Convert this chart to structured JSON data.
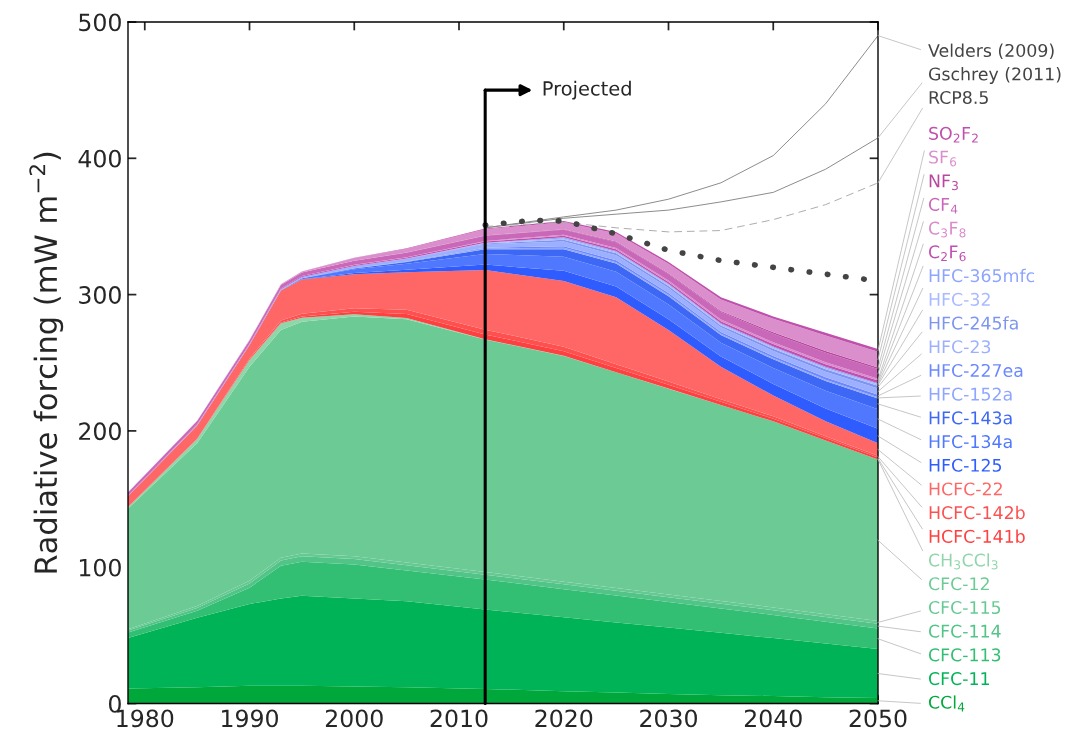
{
  "chart_data": {
    "type": "area",
    "stacked": true,
    "ylabel": "Radiative forcing (mW m$^{−2}$)",
    "xlim": [
      1978.4,
      2050
    ],
    "ylim": [
      0,
      500
    ],
    "xticks": [
      1980,
      1990,
      2000,
      2010,
      2020,
      2030,
      2040,
      2050
    ],
    "yticks": [
      0,
      100,
      200,
      300,
      400,
      500
    ],
    "grid": false,
    "legend": "right",
    "ref_lines": [
      {
        "axis": "x",
        "value": 2012.5,
        "label": "Projected"
      }
    ],
    "x": [
      1978.4,
      1985,
      1990,
      1993,
      1995,
      2000,
      2005,
      2012.5,
      2020,
      2025,
      2030,
      2035,
      2040,
      2045,
      2050
    ],
    "series": [
      {
        "name": "CCl$_{4}$",
        "color": "#00a83c",
        "values": [
          11,
          12,
          13,
          13,
          13,
          12.5,
          12,
          10.7,
          9,
          8,
          7,
          6,
          5.5,
          4.5,
          4
        ]
      },
      {
        "name": "CFC-11",
        "color": "#00b356",
        "values": [
          37,
          51,
          60,
          64,
          66,
          64.5,
          63,
          58.3,
          54.3,
          51.5,
          48.7,
          45.9,
          42.5,
          39.5,
          36
        ]
      },
      {
        "name": "CFC-113",
        "color": "#33bf73",
        "values": [
          4,
          5,
          12,
          24,
          25,
          25,
          22.5,
          22,
          20.6,
          19.7,
          18.7,
          17.8,
          17,
          16,
          15
        ]
      },
      {
        "name": "CFC-114",
        "color": "#52c487",
        "values": [
          1.5,
          2,
          3,
          4,
          4,
          4,
          4,
          3.5,
          3.5,
          3.5,
          3.5,
          3.5,
          3.5,
          3.5,
          3.5
        ]
      },
      {
        "name": "CFC-115",
        "color": "#66c993",
        "values": [
          1,
          1.5,
          2,
          2,
          2,
          2,
          2,
          2,
          2,
          2,
          2,
          2,
          2,
          2,
          2
        ]
      },
      {
        "name": "CFC-12",
        "color": "#6ccb95",
        "values": [
          88.5,
          119.5,
          157,
          167,
          170,
          176,
          178.5,
          170.5,
          165.6,
          158.3,
          151.1,
          143.8,
          136.5,
          127.5,
          118.5
        ]
      },
      {
        "name": "CH$_{3}$CCl$_{3}$",
        "color": "#8fd6aa",
        "values": [
          1,
          3,
          5,
          5,
          3,
          1.5,
          0.8,
          0.3,
          0.2,
          0.1,
          0.1,
          0,
          0,
          0,
          0
        ]
      },
      {
        "name": "HCFC-141b",
        "color": "#ff4040",
        "values": [
          0,
          0,
          0,
          0.5,
          1,
          2,
          3,
          3.5,
          3.3,
          3,
          2.7,
          2.3,
          2,
          1.7,
          1.5
        ]
      },
      {
        "name": "HCFC-142b",
        "color": "#ff5050",
        "values": [
          0.2,
          0.3,
          1,
          1.5,
          2,
          2.5,
          3,
          3.5,
          3.2,
          2.8,
          2.4,
          2,
          1.7,
          1.4,
          1.2
        ]
      },
      {
        "name": "HCFC-22",
        "color": "#ff6666",
        "values": [
          7.8,
          9.7,
          10,
          22,
          25,
          25,
          27.6,
          43.7,
          48.3,
          49.1,
          37.8,
          23.7,
          15.3,
          10.9,
          9.3
        ]
      },
      {
        "name": "HFC-125",
        "color": "#2f5cff",
        "values": [
          0,
          0,
          0,
          0,
          0.2,
          0.8,
          1.8,
          4,
          7.5,
          8,
          8,
          7.5,
          8.5,
          9.5,
          10.5
        ]
      },
      {
        "name": "HFC-134a",
        "color": "#5078ff",
        "values": [
          0,
          0,
          0,
          0.2,
          0.8,
          2.8,
          4.5,
          7.8,
          10.3,
          10.8,
          10.8,
          10.2,
          11.6,
          13.0,
          14.4
        ]
      },
      {
        "name": "HFC-143a",
        "color": "#3d68f5",
        "values": [
          0,
          0,
          0,
          0,
          0,
          0.5,
          1.2,
          3.5,
          5.5,
          6,
          6,
          5.6,
          6.4,
          7.1,
          7.8
        ]
      },
      {
        "name": "HFC-152a",
        "color": "#8fa6ff",
        "values": [
          0,
          0,
          0,
          0,
          0,
          0.1,
          0.2,
          0.5,
          1.0,
          1.0,
          1.0,
          1.0,
          1.0,
          1.0,
          1.0
        ]
      },
      {
        "name": "HFC-227ea",
        "color": "#6b88ff",
        "values": [
          0,
          0,
          0,
          0,
          0,
          0.1,
          0.2,
          0.6,
          1.2,
          1.4,
          1.4,
          1.3,
          1.5,
          1.7,
          1.9
        ]
      },
      {
        "name": "HFC-23",
        "color": "#9db0ff",
        "values": [
          0.3,
          0.5,
          0.5,
          0.8,
          1.0,
          1.7,
          2.0,
          2.6,
          3.5,
          3.6,
          3.6,
          3.4,
          3.7,
          4.1,
          4.5
        ]
      },
      {
        "name": "HFC-245fa",
        "color": "#7d95f0",
        "values": [
          0,
          0,
          0,
          0,
          0,
          0,
          0.1,
          0.5,
          1.3,
          1.5,
          1.5,
          1.4,
          1.6,
          1.8,
          2.0
        ]
      },
      {
        "name": "HFC-32",
        "color": "#a9baff",
        "values": [
          0,
          0,
          0,
          0,
          0,
          0,
          0,
          0.4,
          0.9,
          0.9,
          0.9,
          0.8,
          0.9,
          1.0,
          1.1
        ]
      },
      {
        "name": "HFC-365mfc",
        "color": "#8ea4ff",
        "values": [
          0,
          0,
          0,
          0,
          0,
          0,
          0,
          0.1,
          0.8,
          0.8,
          0.8,
          0.8,
          0.8,
          0.8,
          0.8
        ]
      },
      {
        "name": "C$_{2}$F$_{6}$",
        "color": "#c24fb0",
        "values": [
          0.3,
          0.4,
          0.5,
          0.5,
          0.6,
          0.8,
          0.9,
          1.0,
          1.1,
          1.2,
          1.3,
          1.5,
          1.7,
          1.9,
          1.9
        ]
      },
      {
        "name": "C$_{3}$F$_{8}$",
        "color": "#d98bcb",
        "values": [
          0,
          0,
          0,
          0,
          0,
          0.1,
          0.1,
          0.4,
          0.8,
          1.0,
          1.1,
          1.2,
          1.3,
          1.4,
          1.4
        ]
      },
      {
        "name": "CF$_{4}$",
        "color": "#c968b9",
        "values": [
          2.2,
          2.3,
          2.4,
          2.5,
          2.6,
          2.9,
          3.3,
          3.7,
          3.7,
          4.2,
          4.7,
          5.5,
          6.3,
          7.1,
          7.1
        ]
      },
      {
        "name": "NF$_{3}$",
        "color": "#b8489f",
        "values": [
          0,
          0,
          0,
          0,
          0,
          0.1,
          0.2,
          0.3,
          0.4,
          0.5,
          0.6,
          0.8,
          1.0,
          1.2,
          1.2
        ]
      },
      {
        "name": "SF$_{6}$",
        "color": "#da8fcc",
        "values": [
          0.2,
          0.3,
          0.4,
          0.5,
          0.6,
          1.9,
          2.8,
          4.6,
          5.0,
          5.9,
          6.9,
          8.4,
          9.9,
          11.4,
          11.4
        ]
      },
      {
        "name": "SO$_{2}$F$_{2}$",
        "color": "#c050ac",
        "values": [
          0,
          0,
          0,
          0.1,
          0.1,
          0.2,
          0.3,
          0.5,
          1.0,
          1.2,
          1.4,
          1.6,
          1.8,
          2.0,
          2.0
        ]
      },
      {
        "name": "Velders (2009)",
        "type": "line",
        "color": "#888888",
        "line_style": "solid",
        "x": [
          2012.5,
          2020,
          2025,
          2030,
          2035,
          2040,
          2045,
          2050
        ],
        "values": [
          349,
          357,
          362,
          370,
          382,
          402,
          440,
          490
        ]
      },
      {
        "name": "Gschrey (2011)",
        "type": "line",
        "color": "#888888",
        "line_style": "solid",
        "x": [
          2012.5,
          2020,
          2025,
          2030,
          2035,
          2040,
          2045,
          2050
        ],
        "values": [
          349,
          356,
          359,
          362,
          368,
          375,
          392,
          415
        ]
      },
      {
        "name": "RCP8.5",
        "type": "line",
        "color": "#aaaaaa",
        "line_style": "dashed",
        "x": [
          2012.5,
          2020,
          2025,
          2030,
          2035,
          2040,
          2045,
          2050
        ],
        "values": [
          350,
          353,
          349,
          346,
          347,
          355,
          366,
          382
        ]
      },
      {
        "type": "line",
        "color": "#444444",
        "line_style": "dotted",
        "x": [
          2012.5,
          2017,
          2020,
          2025,
          2030,
          2035,
          2040,
          2045,
          2050
        ],
        "values": [
          351,
          354.5,
          354,
          344.6,
          332.5,
          325,
          320,
          315,
          310
        ]
      }
    ]
  }
}
